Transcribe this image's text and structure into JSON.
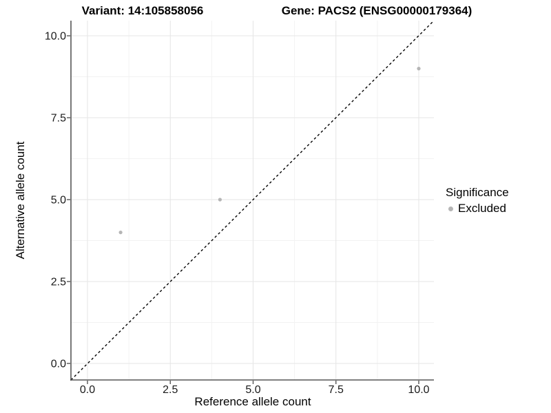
{
  "chart_data": {
    "type": "scatter",
    "title_left": "Variant: 14:105858056",
    "title_right": "Gene: PACS2 (ENSG00000179364)",
    "xlabel": "Reference allele count",
    "ylabel": "Alternative allele count",
    "xlim": [
      -0.5,
      10.5
    ],
    "ylim": [
      -0.5,
      10.5
    ],
    "x_ticks": [
      0.0,
      2.5,
      5.0,
      7.5,
      10.0
    ],
    "y_ticks": [
      0.0,
      2.5,
      5.0,
      7.5,
      10.0
    ],
    "tick_decimals": 1,
    "grid": "major and minor gridlines, white panel",
    "series": [
      {
        "name": "Excluded",
        "color": "#b5b5b5",
        "points": [
          {
            "x": 1,
            "y": 4
          },
          {
            "x": 4,
            "y": 5
          },
          {
            "x": 10,
            "y": 9
          }
        ]
      }
    ],
    "reference_line": {
      "type": "identity y=x",
      "style": "dashed",
      "color": "#000000"
    },
    "legend": {
      "position": "right",
      "title": "Significance",
      "items": [
        {
          "label": "Excluded",
          "color": "#b5b5b5"
        }
      ]
    }
  },
  "colors": {
    "point": "#b5b5b5",
    "grid_major": "#e6e6e6",
    "grid_minor": "#f2f2f2",
    "axis_line": "#555555",
    "tick_text": "#1a1a1a",
    "dashed_line": "#000000",
    "background": "#ffffff"
  }
}
